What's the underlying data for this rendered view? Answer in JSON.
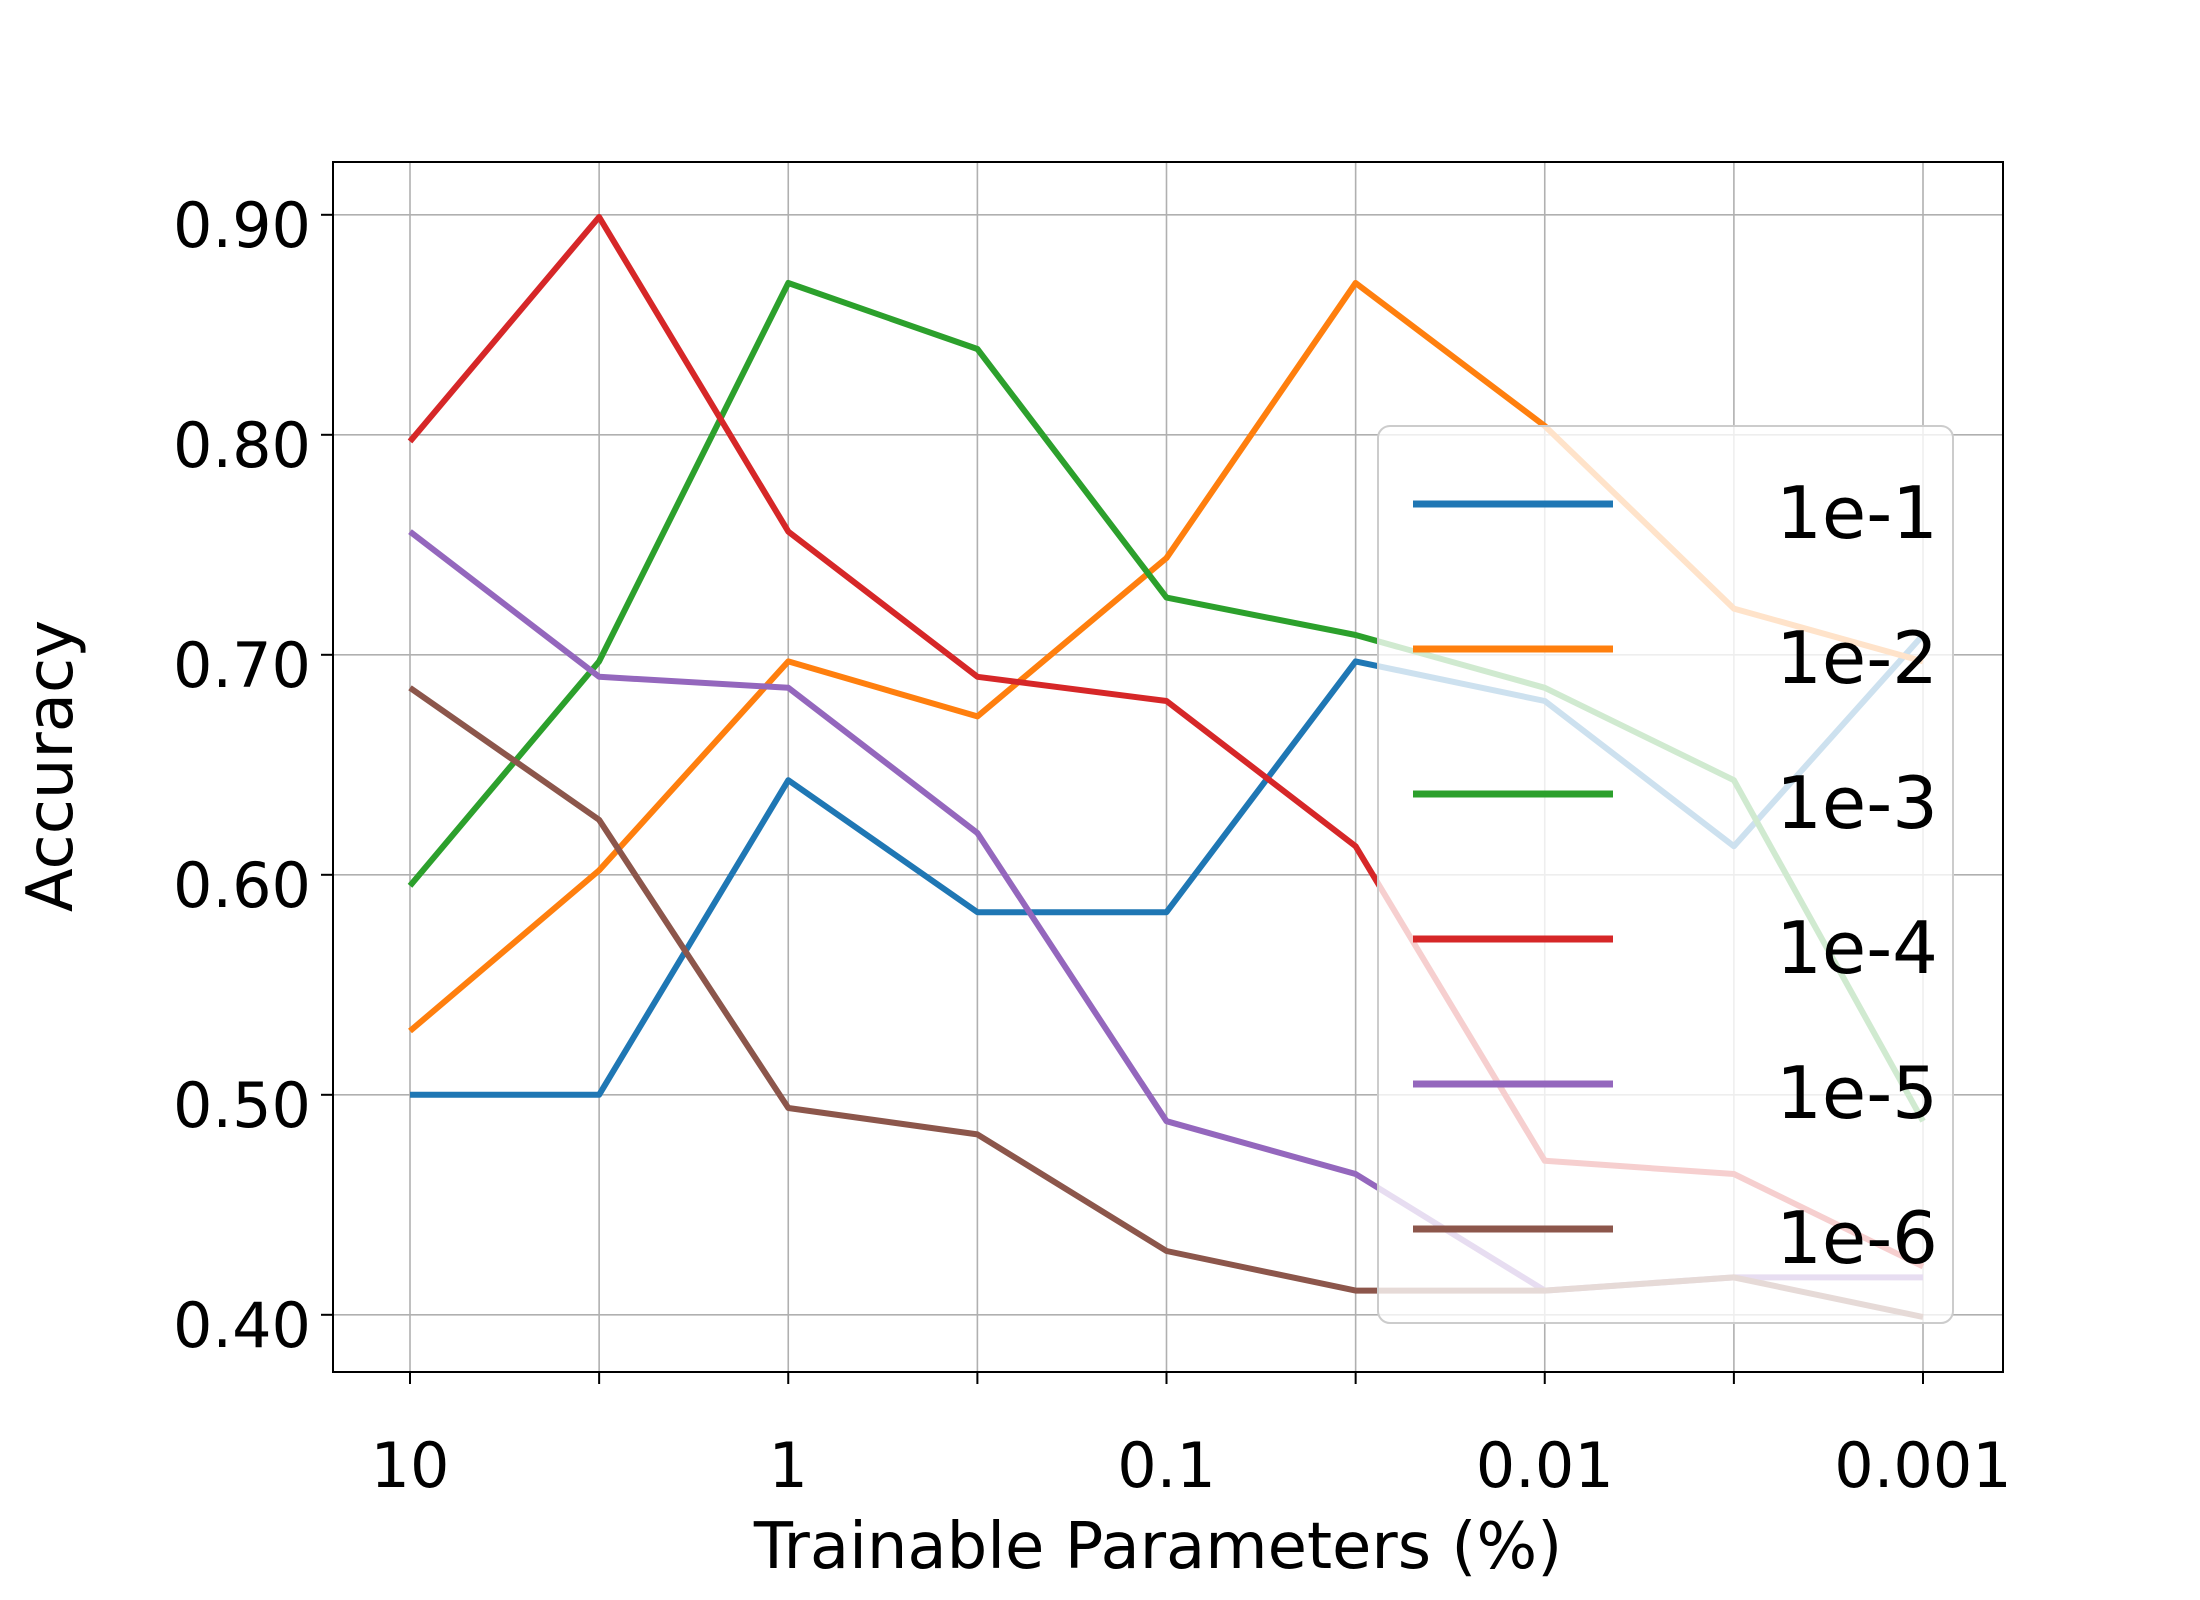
{
  "chart_data": {
    "type": "line",
    "title": "",
    "xlabel": "Trainable Parameters (%)",
    "ylabel": "Accuracy",
    "x_scale": "log",
    "x_reversed": true,
    "x": [
      10,
      3.162,
      1,
      0.3162,
      0.1,
      0.03162,
      0.01,
      0.003162,
      0.001
    ],
    "x_tick_labels": [
      "10",
      "1",
      "0.1",
      "0.01",
      "0.001"
    ],
    "x_tick_values": [
      10,
      1,
      0.1,
      0.01,
      0.001
    ],
    "ylim": [
      0.374,
      0.924
    ],
    "y_ticks": [
      0.4,
      0.5,
      0.6,
      0.7,
      0.8,
      0.9
    ],
    "y_tick_labels": [
      "0.40",
      "0.50",
      "0.60",
      "0.70",
      "0.80",
      "0.90"
    ],
    "grid": true,
    "legend_position": "right",
    "series": [
      {
        "name": "1e-1",
        "color": "#1f77b4",
        "values": [
          0.5,
          0.5,
          0.643,
          0.583,
          0.583,
          0.697,
          0.679,
          0.613,
          0.709
        ]
      },
      {
        "name": "1e-2",
        "color": "#ff7f0e",
        "values": [
          0.529,
          0.602,
          0.697,
          0.672,
          0.744,
          0.869,
          0.804,
          0.721,
          0.697
        ]
      },
      {
        "name": "1e-3",
        "color": "#2ca02c",
        "values": [
          0.595,
          0.697,
          0.869,
          0.839,
          0.726,
          0.709,
          0.685,
          0.643,
          0.488
        ]
      },
      {
        "name": "1e-4",
        "color": "#d62728",
        "values": [
          0.797,
          0.899,
          0.756,
          0.69,
          0.679,
          0.613,
          0.47,
          0.464,
          0.422
        ]
      },
      {
        "name": "1e-5",
        "color": "#9467bd",
        "values": [
          0.756,
          0.69,
          0.685,
          0.619,
          0.488,
          0.464,
          0.411,
          0.417,
          0.417
        ]
      },
      {
        "name": "1e-6",
        "color": "#8c564b",
        "values": [
          0.685,
          0.625,
          0.494,
          0.482,
          0.429,
          0.411,
          0.411,
          0.417,
          0.399
        ]
      }
    ]
  }
}
